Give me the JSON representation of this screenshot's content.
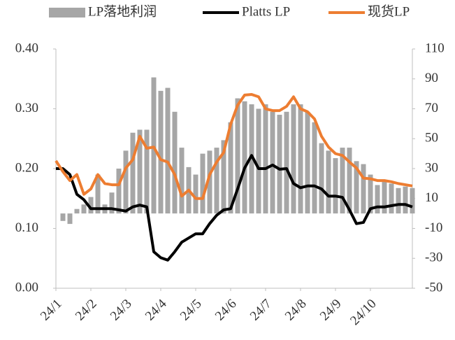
{
  "chart_data": {
    "type": "combo",
    "categories": [
      "24/1",
      null,
      null,
      null,
      null,
      "24/2",
      null,
      null,
      null,
      null,
      "24/3",
      null,
      null,
      null,
      null,
      "24/4",
      null,
      null,
      null,
      null,
      "24/5",
      null,
      null,
      null,
      null,
      "24/6",
      null,
      null,
      null,
      null,
      "24/7",
      null,
      null,
      null,
      null,
      "24/8",
      null,
      null,
      null,
      null,
      "24/9",
      null,
      null,
      null,
      null,
      "24/10",
      null,
      null,
      null,
      null,
      null,
      null
    ],
    "series": [
      {
        "name": "LP落地利润",
        "type": "bar",
        "axis": "y2",
        "color": "#a6a6a6",
        "values": [
          0,
          -5,
          -7,
          3,
          6,
          11,
          26,
          6,
          14,
          30,
          42,
          54,
          56,
          56,
          91,
          82,
          84,
          68,
          44,
          31,
          26,
          40,
          42,
          44,
          49,
          61,
          77,
          75,
          73,
          70,
          73,
          68,
          66,
          68,
          73,
          73,
          68,
          61,
          47,
          42,
          37,
          44,
          44,
          35,
          33,
          26,
          19,
          22,
          20,
          17,
          18,
          17
        ]
      },
      {
        "name": "Platts LP",
        "type": "line",
        "axis": "y",
        "color": "#000000",
        "values": [
          0.2,
          0.2,
          0.19,
          0.157,
          0.148,
          0.133,
          0.133,
          0.133,
          0.133,
          0.131,
          0.129,
          0.136,
          0.139,
          0.136,
          0.061,
          0.051,
          0.047,
          0.061,
          0.077,
          0.084,
          0.091,
          0.091,
          0.108,
          0.122,
          0.131,
          0.133,
          0.166,
          0.201,
          0.222,
          0.2,
          0.2,
          0.206,
          0.199,
          0.2,
          0.175,
          0.168,
          0.171,
          0.171,
          0.166,
          0.154,
          0.154,
          0.152,
          0.131,
          0.108,
          0.11,
          0.133,
          0.136,
          0.136,
          0.138,
          0.14,
          0.14,
          0.136
        ]
      },
      {
        "name": "现货LP",
        "type": "line",
        "axis": "y",
        "color": "#ed7d31",
        "values": [
          0.213,
          0.195,
          0.18,
          0.19,
          0.157,
          0.166,
          0.19,
          0.175,
          0.173,
          0.173,
          0.201,
          0.215,
          0.254,
          0.234,
          0.236,
          0.215,
          0.211,
          0.19,
          0.154,
          0.164,
          0.15,
          0.15,
          0.19,
          0.211,
          0.227,
          0.274,
          0.306,
          0.323,
          0.324,
          0.32,
          0.3,
          0.297,
          0.297,
          0.304,
          0.32,
          0.3,
          0.295,
          0.283,
          0.254,
          0.236,
          0.225,
          0.222,
          0.211,
          0.201,
          0.184,
          0.183,
          0.18,
          0.18,
          0.178,
          0.175,
          0.173,
          0.171
        ]
      }
    ],
    "ylim": [
      0,
      0.4
    ],
    "yticks": [
      {
        "value": 0,
        "label": "0.00"
      },
      {
        "value": 0.1,
        "label": "0.10"
      },
      {
        "value": 0.2,
        "label": "0.20"
      },
      {
        "value": 0.3,
        "label": "0.30"
      },
      {
        "value": 0.4,
        "label": "0.40"
      }
    ],
    "y2lim": [
      -50,
      110
    ],
    "y2ticks": [
      -50,
      -30,
      -10,
      10,
      30,
      50,
      70,
      90,
      110
    ],
    "legend": "top"
  }
}
